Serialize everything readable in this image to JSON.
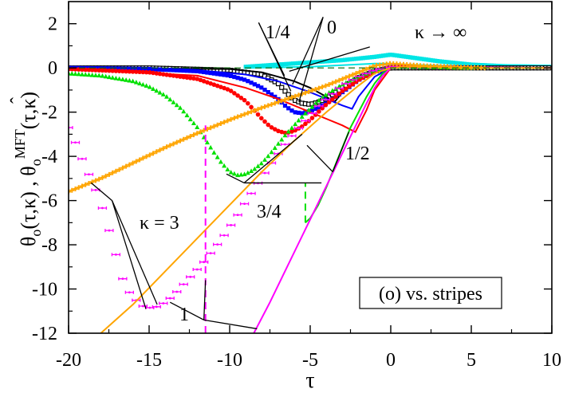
{
  "chart_data": {
    "type": "line",
    "title": "",
    "xlabel": "τ",
    "ylabel": {
      "main": "θ",
      "sub1": "o",
      "args1": "(τ,κ) , ",
      "hat": "ˆ",
      "main2": "θ",
      "sub2": "o",
      "sup2": "MFT",
      "args2": "(τ,κ)"
    },
    "xlim": [
      -20,
      10
    ],
    "ylim": [
      -12,
      3
    ],
    "xticks": [
      -20,
      -15,
      -10,
      -5,
      0,
      5,
      10
    ],
    "yticks": [
      -12,
      -10,
      -8,
      -6,
      -4,
      -2,
      0,
      2
    ],
    "legend_box": "(o) vs. stripes",
    "colors": {
      "kappa_inf": "#00e5e5",
      "k0": "#000000",
      "k1_4": "#0000ff",
      "k1_2": "#ff0000",
      "k3_4": "#00e000",
      "k1": "#ff00ff",
      "k3": "#ffa500"
    },
    "series": [
      {
        "name": "κ→∞ MC",
        "color_key": "kappa_inf",
        "kind": "mc",
        "x": [
          -9,
          -7,
          -5,
          -3,
          -1,
          0,
          1,
          3,
          5,
          7,
          10
        ],
        "y": [
          0.05,
          0.15,
          0.25,
          0.35,
          0.5,
          0.6,
          0.5,
          0.3,
          0.15,
          0.08,
          0.05
        ]
      },
      {
        "name": "κ→∞ MFT",
        "color_key": "kappa_inf",
        "kind": "mft",
        "x": [
          -9,
          -5,
          -1,
          0,
          1,
          5,
          10
        ],
        "y": [
          0.0,
          0.05,
          0.2,
          0.2,
          0.15,
          0.05,
          0.0
        ]
      },
      {
        "name": "κ=0 MC",
        "color_key": "k0",
        "kind": "mc",
        "x": [
          -20,
          -15,
          -10,
          -8,
          -7,
          -6.5,
          -6,
          -5.5,
          -5,
          -4.5,
          -4,
          -3,
          -2,
          -1,
          0,
          1,
          5,
          10
        ],
        "y": [
          0.0,
          0.0,
          -0.1,
          -0.3,
          -0.7,
          -1.1,
          -1.45,
          -1.6,
          -1.65,
          -1.55,
          -1.4,
          -0.9,
          -0.45,
          -0.15,
          0.0,
          0.0,
          0.0,
          0.0
        ]
      },
      {
        "name": "κ=0 MFT",
        "color_key": "k0",
        "kind": "mft",
        "x": [
          -20,
          -10,
          -8,
          -6,
          -5,
          -4,
          -3.5,
          -3,
          -2,
          -1,
          0,
          1,
          10
        ],
        "y": [
          0.0,
          -0.05,
          -0.2,
          -0.6,
          -0.9,
          -1.3,
          -1.55,
          -1.1,
          -0.5,
          -0.15,
          0.0,
          0.0,
          0.0
        ]
      },
      {
        "name": "κ=1/4 MC",
        "color_key": "k1_4",
        "kind": "mc",
        "x": [
          -20,
          -15,
          -12,
          -10,
          -9,
          -8,
          -7,
          -6.5,
          -6,
          -5.5,
          -5,
          -4.5,
          -4,
          -3,
          -2,
          -1,
          0,
          1,
          5
        ],
        "y": [
          0.0,
          -0.05,
          -0.15,
          -0.35,
          -0.55,
          -0.9,
          -1.4,
          -1.75,
          -2.0,
          -2.05,
          -1.95,
          -1.8,
          -1.6,
          -1.1,
          -0.55,
          -0.15,
          0.05,
          0.05,
          0.0
        ]
      },
      {
        "name": "κ=1/4 MFT",
        "color_key": "k1_4",
        "kind": "mft",
        "x": [
          -20,
          -12,
          -9,
          -7,
          -5,
          -4,
          -3,
          -2.4,
          -2,
          -1,
          0,
          1,
          10
        ],
        "y": [
          0.0,
          -0.1,
          -0.3,
          -0.6,
          -1.1,
          -1.4,
          -1.7,
          -1.85,
          -1.3,
          -0.4,
          0.0,
          0.05,
          0.0
        ]
      },
      {
        "name": "κ=1/2 MC",
        "color_key": "k1_2",
        "kind": "mc",
        "x": [
          -20,
          -15,
          -12,
          -10,
          -9,
          -8.5,
          -8,
          -7.5,
          -7,
          -6.5,
          -6,
          -5.5,
          -5,
          -4.5,
          -4,
          -3,
          -2,
          -1,
          0,
          1,
          5
        ],
        "y": [
          -0.05,
          -0.2,
          -0.5,
          -1.0,
          -1.5,
          -1.9,
          -2.3,
          -2.65,
          -2.85,
          -2.95,
          -2.85,
          -2.65,
          -2.35,
          -2.0,
          -1.65,
          -1.05,
          -0.55,
          -0.15,
          0.05,
          0.05,
          0.0
        ]
      },
      {
        "name": "κ=1/2 MFT",
        "color_key": "k1_2",
        "kind": "mft",
        "x": [
          -20,
          -12,
          -9,
          -7,
          -5,
          -4,
          -3,
          -2.2,
          -1.5,
          -1,
          0,
          1,
          10
        ],
        "y": [
          -0.05,
          -0.35,
          -0.9,
          -1.4,
          -2.0,
          -2.3,
          -2.6,
          -2.9,
          -1.9,
          -1.0,
          0.0,
          0.05,
          0.0
        ]
      },
      {
        "name": "κ=3/4 MC",
        "color_key": "k3_4",
        "kind": "mc",
        "x": [
          -20,
          -18,
          -16,
          -15,
          -14,
          -13,
          -12,
          -11.5,
          -11,
          -10.5,
          -10,
          -9.5,
          -9,
          -8.5,
          -8,
          -7.5,
          -7,
          -6.5,
          -6,
          -5.5,
          -5,
          -4.5,
          -4,
          -3,
          -2,
          -1,
          0,
          1,
          5
        ],
        "y": [
          -0.25,
          -0.35,
          -0.6,
          -0.85,
          -1.25,
          -1.85,
          -2.7,
          -3.25,
          -3.8,
          -4.3,
          -4.7,
          -4.85,
          -4.8,
          -4.6,
          -4.3,
          -3.9,
          -3.45,
          -3.0,
          -2.6,
          -2.2,
          -1.85,
          -1.5,
          -1.2,
          -0.75,
          -0.4,
          -0.1,
          0.05,
          0.05,
          0.0
        ]
      },
      {
        "name": "κ=3/4 MFT",
        "color_key": "k3_4",
        "kind": "mft",
        "x": [
          -5.3,
          -5.0,
          -4.5,
          -4,
          -3.5,
          -3,
          -2.5,
          -2,
          -1.5,
          -1,
          -0.5,
          0,
          1,
          10
        ],
        "y": [
          -7.0,
          -6.8,
          -6.2,
          -5.4,
          -4.5,
          -3.6,
          -2.7,
          -2.0,
          -1.3,
          -0.7,
          -0.25,
          0.0,
          0.05,
          0.0
        ]
      },
      {
        "name": "κ=1 MC",
        "color_key": "k1",
        "kind": "mc",
        "x": [
          -20,
          -19.5,
          -19,
          -18.5,
          -18,
          -17.5,
          -17,
          -16.5,
          -16,
          -15.5,
          -15,
          -14.5,
          -14,
          -13.5,
          -13,
          -12.5,
          -12,
          -11.5,
          -11,
          -10.5,
          -10,
          -9.5,
          -9,
          -8.5,
          -8,
          -7.5,
          -7,
          -6.5,
          -6,
          -5.5,
          -5,
          -4.5,
          -4,
          -3,
          -2,
          -1,
          0,
          1,
          5
        ],
        "y": [
          -2.7,
          -3.5,
          -4.4,
          -5.2,
          -6.1,
          -7.3,
          -8.6,
          -9.9,
          -10.35,
          -10.75,
          -10.85,
          -10.8,
          -10.6,
          -10.3,
          -9.9,
          -9.5,
          -9.1,
          -8.7,
          -8.2,
          -7.75,
          -7.2,
          -6.65,
          -6.05,
          -5.5,
          -4.95,
          -4.4,
          -3.9,
          -3.4,
          -2.95,
          -2.55,
          -2.15,
          -1.75,
          -1.4,
          -0.8,
          -0.4,
          -0.1,
          0.05,
          0.05,
          0.0
        ]
      },
      {
        "name": "κ=1 MFT",
        "color_key": "k1",
        "kind": "mft",
        "x": [
          -8.5,
          -7.5,
          -6.5,
          -5.5,
          -4.5,
          -3.5,
          -2.5,
          -1.5,
          -1,
          -0.5,
          0,
          1,
          10
        ],
        "y": [
          -12,
          -10.6,
          -9.1,
          -7.6,
          -6.1,
          -4.6,
          -3.1,
          -1.6,
          -0.9,
          -0.35,
          0.0,
          0.05,
          0.0
        ]
      },
      {
        "name": "κ=3 MC",
        "color_key": "k3",
        "kind": "mc",
        "x": [
          -20,
          -18,
          -16,
          -14,
          -12,
          -10,
          -8,
          -6,
          -4,
          -2,
          -1,
          0,
          1,
          2,
          4,
          6
        ],
        "y": [
          -5.6,
          -5.0,
          -4.3,
          -3.6,
          -2.95,
          -2.35,
          -1.8,
          -1.3,
          -0.8,
          -0.2,
          0.1,
          0.2,
          0.15,
          0.1,
          0.05,
          0.0
        ]
      },
      {
        "name": "κ=3 MFT",
        "color_key": "k3",
        "kind": "mft",
        "x": [
          -18,
          -16,
          -14,
          -12,
          -10,
          -8,
          -6,
          -4,
          -2,
          -1,
          0,
          1,
          5,
          10
        ],
        "y": [
          -12,
          -10.7,
          -9.2,
          -7.7,
          -6.2,
          -4.7,
          -3.3,
          -2.0,
          -0.8,
          -0.25,
          0.0,
          0.05,
          0.0,
          0.0
        ]
      }
    ],
    "vertical_markers": [
      {
        "x": -11.5,
        "y_from": -12,
        "y_to": -2.6,
        "color_key": "k1"
      },
      {
        "x": -5.3,
        "y_from": -7.0,
        "y_to": -5.2,
        "color_key": "k3_4"
      }
    ],
    "annotations": [
      {
        "text": "κ → ∞"
      },
      {
        "text": "1/4"
      },
      {
        "text": "0"
      },
      {
        "text": "1/2"
      },
      {
        "text": "κ = 3"
      },
      {
        "text": "3/4"
      },
      {
        "text": "1"
      }
    ]
  }
}
